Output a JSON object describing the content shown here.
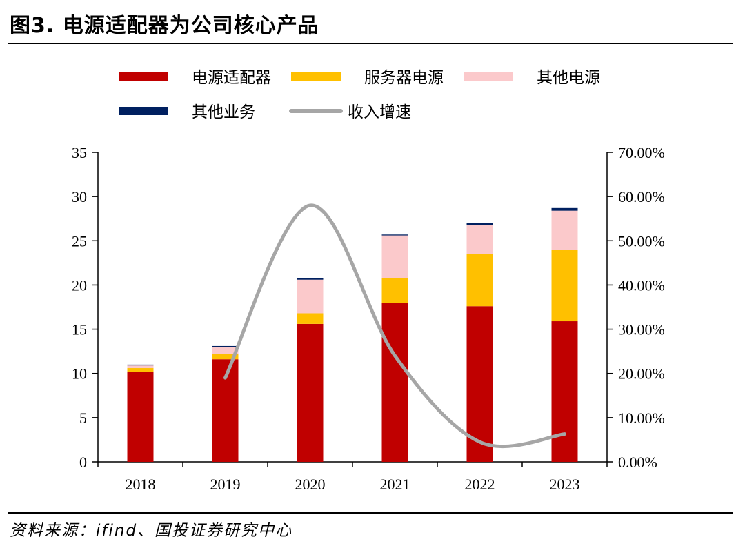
{
  "header": {
    "title": "图3. 电源适配器为公司核心产品"
  },
  "footer": {
    "source": "资料来源：ifind、国投证券研究中心"
  },
  "colors": {
    "adapter": "#C00000",
    "server": "#FFC000",
    "other_power": "#FBC9CB",
    "other_biz": "#002060",
    "growth": "#A6A6A6"
  },
  "chart_data": {
    "type": "bar",
    "stacked": true,
    "title": "电源适配器为公司核心产品",
    "categories": [
      "2018",
      "2019",
      "2020",
      "2021",
      "2022",
      "2023"
    ],
    "series": [
      {
        "name": "电源适配器",
        "axis": "left",
        "values": [
          10.2,
          11.6,
          15.6,
          18.0,
          17.6,
          15.9
        ]
      },
      {
        "name": "服务器电源",
        "axis": "left",
        "values": [
          0.4,
          0.6,
          1.2,
          2.8,
          5.9,
          8.1
        ]
      },
      {
        "name": "其他电源",
        "axis": "left",
        "values": [
          0.3,
          0.8,
          3.8,
          4.8,
          3.3,
          4.4
        ]
      },
      {
        "name": "其他业务",
        "axis": "left",
        "values": [
          0.1,
          0.1,
          0.2,
          0.1,
          0.2,
          0.3
        ]
      },
      {
        "name": "收入增速",
        "type": "line",
        "axis": "right",
        "smooth": true,
        "x": [
          "2019",
          "2020",
          "2021",
          "2022",
          "2023"
        ],
        "values": [
          19.0,
          58.0,
          24.0,
          4.5,
          6.3
        ]
      }
    ],
    "y_left": {
      "min": 0,
      "max": 35,
      "step": 5,
      "ticks": [
        "0",
        "5",
        "10",
        "15",
        "20",
        "25",
        "30",
        "35"
      ]
    },
    "y_right": {
      "min": 0,
      "max": 70,
      "step": 10,
      "ticks": [
        "0.00%",
        "10.00%",
        "20.00%",
        "30.00%",
        "40.00%",
        "50.00%",
        "60.00%",
        "70.00%"
      ]
    },
    "legend": {
      "position": "top",
      "entries": [
        "电源适配器",
        "服务器电源",
        "其他电源",
        "其他业务",
        "收入增速"
      ]
    },
    "grid": false
  }
}
